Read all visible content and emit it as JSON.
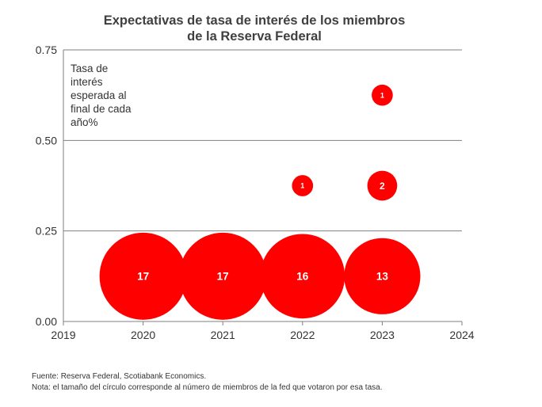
{
  "chart_data": {
    "type": "scatter",
    "title": [
      "Expectativas de tasa de interés de los miembros",
      "de la Reserva Federal"
    ],
    "annotation": [
      "Tasa de",
      "interés",
      "esperada al",
      "final de cada",
      "año%"
    ],
    "xlim": [
      2019,
      2024
    ],
    "ylim": [
      0,
      0.75
    ],
    "x_ticks": [
      2019,
      2020,
      2021,
      2022,
      2023,
      2024
    ],
    "y_ticks": [
      0.0,
      0.25,
      0.5,
      0.75
    ],
    "y_tick_labels": [
      "0.00",
      "0.25",
      "0.50",
      "0.75"
    ],
    "grid": true,
    "color": "#ff0000",
    "points": [
      {
        "x": 2020,
        "y": 0.125,
        "count": 17
      },
      {
        "x": 2021,
        "y": 0.125,
        "count": 17
      },
      {
        "x": 2022,
        "y": 0.125,
        "count": 16
      },
      {
        "x": 2022,
        "y": 0.375,
        "count": 1
      },
      {
        "x": 2023,
        "y": 0.125,
        "count": 13
      },
      {
        "x": 2023,
        "y": 0.375,
        "count": 2
      },
      {
        "x": 2023,
        "y": 0.625,
        "count": 1
      }
    ]
  },
  "footnotes": {
    "source": "Fuente: Reserva Federal, Scotiabank Economics.",
    "note": "Nota: el tamaño del círculo corresponde al número de miembros de la fed que votaron por esa tasa."
  }
}
